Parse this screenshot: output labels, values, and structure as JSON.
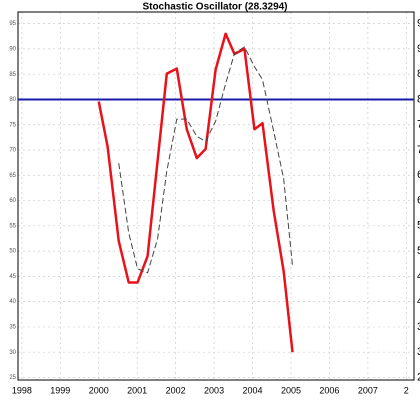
{
  "chart_data": {
    "type": "line",
    "title": "Stochastic Oscillator (28.3294)",
    "x": [
      2000.0,
      2000.23,
      2000.52,
      2000.78,
      2001.01,
      2001.27,
      2001.53,
      2001.77,
      2002.03,
      2002.29,
      2002.55,
      2002.78,
      2003.04,
      2003.3,
      2003.53,
      2003.79,
      2004.05,
      2004.26,
      2004.55,
      2004.81,
      2005.04
    ],
    "series": [
      {
        "color": "#e8121a",
        "dash": false,
        "values": [
          79.6,
          70.7,
          52,
          43.8,
          43.8,
          49,
          67.8,
          85.1,
          86.1,
          74.1,
          68.4,
          70.2,
          85.9,
          93,
          89,
          90,
          74.1,
          75.3,
          58,
          46,
          30
        ]
      },
      {
        "color": "#444444",
        "dash": true,
        "values": [
          null,
          null,
          67.4,
          53.6,
          46.5,
          45.7,
          52.4,
          65.8,
          76.1,
          76.1,
          72.7,
          71.7,
          75.7,
          83.1,
          89.1,
          90.4,
          86.5,
          83.9,
          73.7,
          64.3,
          47.1
        ]
      }
    ],
    "hline": {
      "value": 80,
      "color": "#1a1aa8"
    },
    "xlim": [
      1997.9,
      2008.2
    ],
    "xticks": [
      1998,
      1999,
      2000,
      2001,
      2002,
      2003,
      2004,
      2005,
      2006,
      2007,
      {
        "value": 2008,
        "label": "2"
      }
    ],
    "ylim": [
      24.5,
      97.3
    ],
    "yticks": [
      25,
      30,
      35,
      40,
      45,
      50,
      55,
      60,
      65,
      70,
      75,
      80,
      85,
      90,
      95
    ],
    "grid": true
  }
}
